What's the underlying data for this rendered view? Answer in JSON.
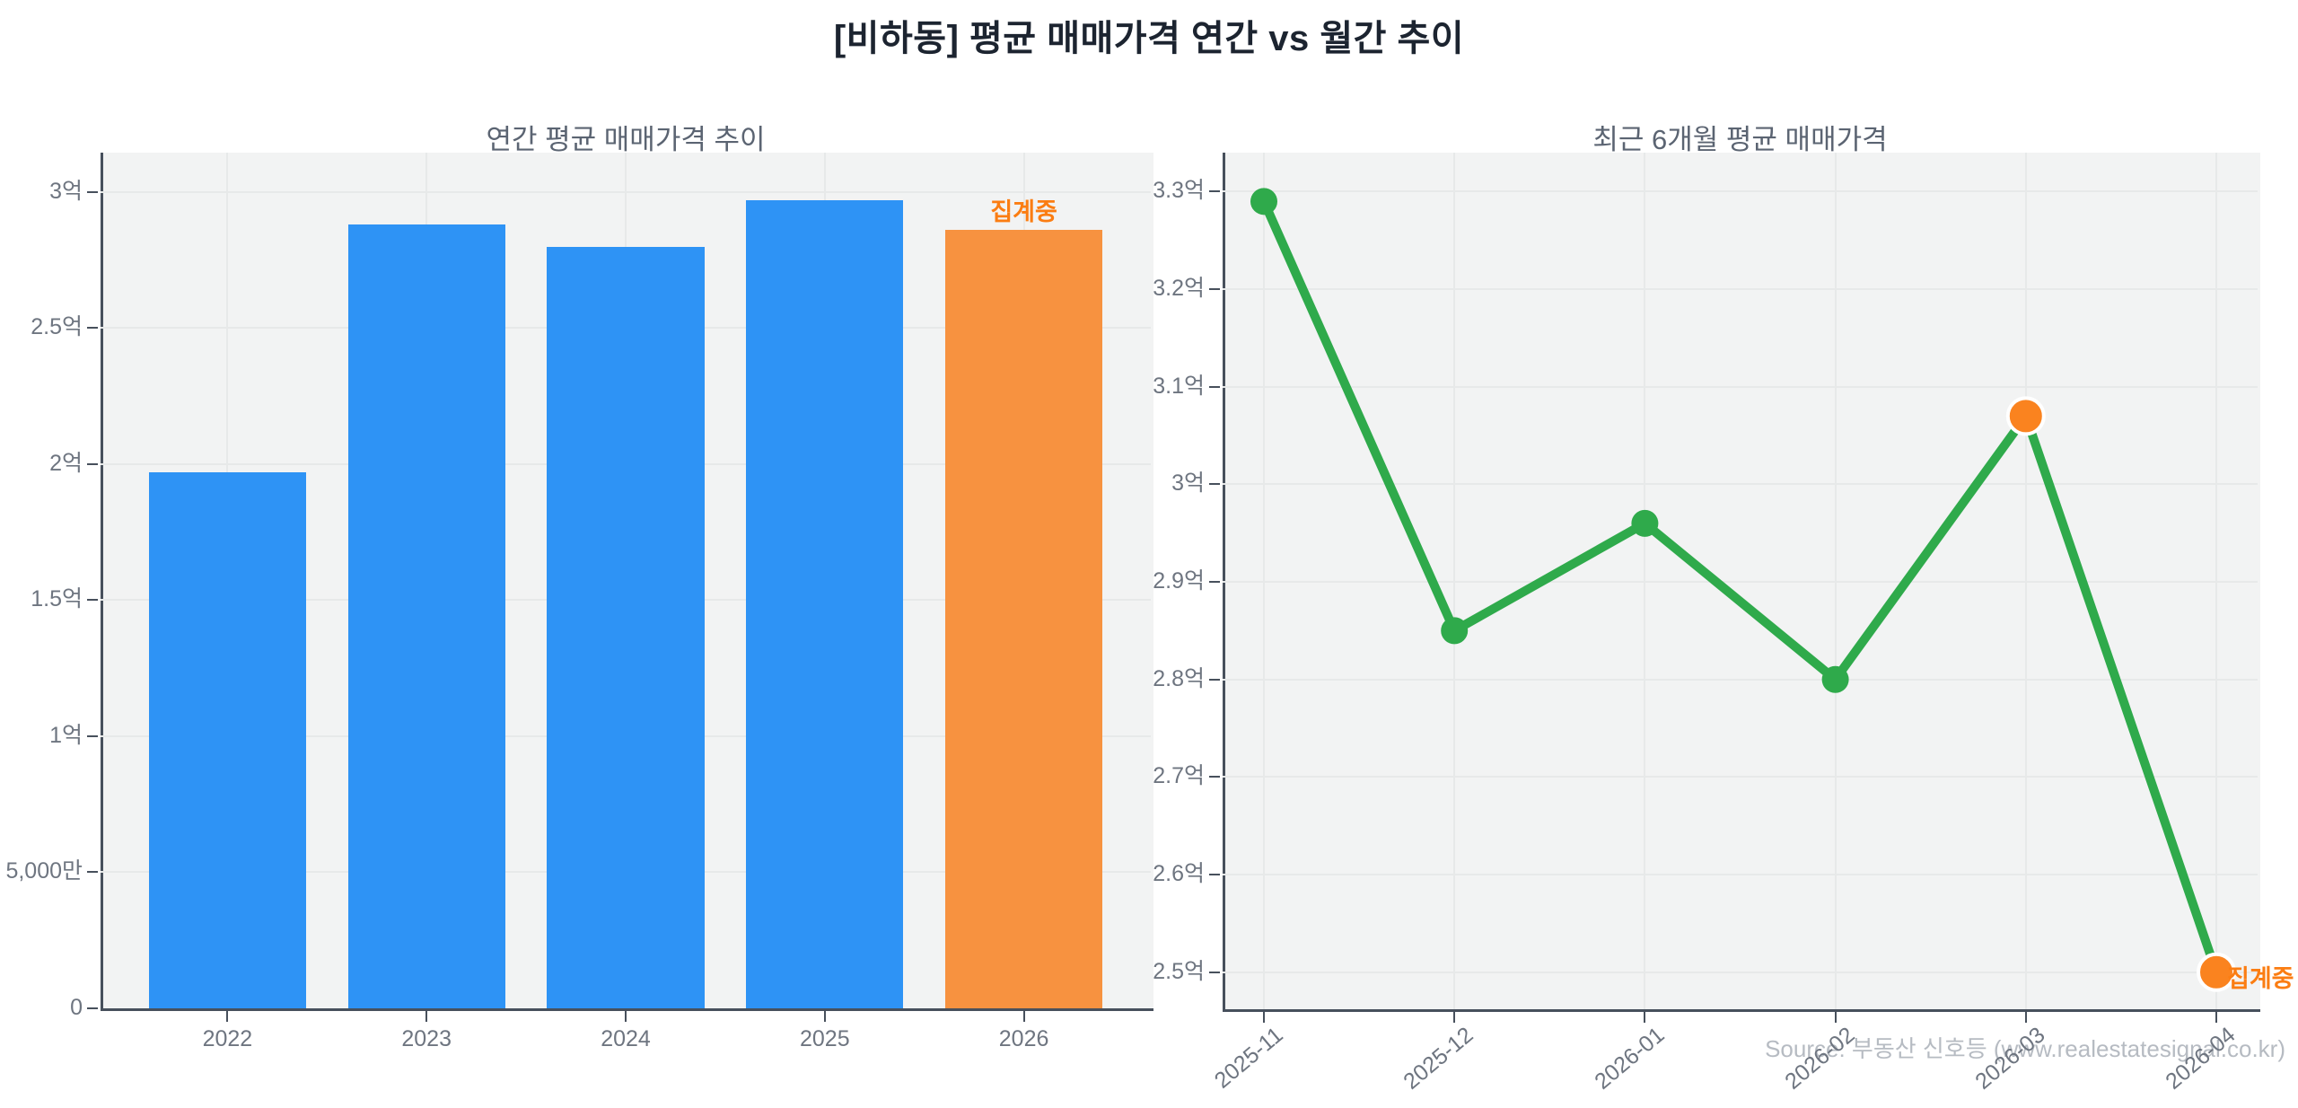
{
  "title": "[비하동] 평균 매매가격 연간 vs 월간 추이",
  "source": "Source: 부동산 신호등 (www.realestatesignal.co.kr)",
  "colors": {
    "blue": "#2e93f5",
    "orange_bar": "#f79240",
    "orange_dot": "#fa831f",
    "orange_text": "#fb7d12",
    "green": "#2faa4b",
    "grid": "#e7e9e9",
    "plot_bg": "#f2f3f3",
    "spine": "#47505c",
    "tick_label": "#6e7580"
  },
  "chart_data": [
    {
      "type": "bar",
      "title": "연간 평균 매매가격 추이",
      "unit": "억원",
      "categories": [
        "2022",
        "2023",
        "2024",
        "2025",
        "2026"
      ],
      "values": [
        1.97,
        2.88,
        2.8,
        2.97,
        2.86
      ],
      "highlight_index": 4,
      "annotation": "집계중",
      "ylim": [
        0,
        3.145
      ],
      "yticks": [
        {
          "value": 0,
          "label": "0"
        },
        {
          "value": 0.5,
          "label": "5,000만"
        },
        {
          "value": 1,
          "label": "1억"
        },
        {
          "value": 1.5,
          "label": "1.5억"
        },
        {
          "value": 2,
          "label": "2억"
        },
        {
          "value": 2.5,
          "label": "2.5억"
        },
        {
          "value": 3,
          "label": "3억"
        }
      ],
      "grid": true,
      "legend": false
    },
    {
      "type": "line",
      "title": "최근 6개월 평균 매매가격",
      "unit": "억원",
      "x": [
        "2025-11",
        "2025-12",
        "2026-01",
        "2026-02",
        "2026-03",
        "2026-04"
      ],
      "values": [
        3.29,
        2.85,
        2.96,
        2.8,
        3.07,
        2.5
      ],
      "highlight_indices": [
        4,
        5
      ],
      "annotation": "집계중",
      "ylim": [
        2.462,
        3.34
      ],
      "yticks": [
        {
          "value": 2.5,
          "label": "2.5억"
        },
        {
          "value": 2.6,
          "label": "2.6억"
        },
        {
          "value": 2.7,
          "label": "2.7억"
        },
        {
          "value": 2.8,
          "label": "2.8억"
        },
        {
          "value": 2.9,
          "label": "2.9억"
        },
        {
          "value": 3.0,
          "label": "3억"
        },
        {
          "value": 3.1,
          "label": "3.1억"
        },
        {
          "value": 3.2,
          "label": "3.2억"
        },
        {
          "value": 3.3,
          "label": "3.3억"
        }
      ],
      "grid": true,
      "legend": false
    }
  ]
}
